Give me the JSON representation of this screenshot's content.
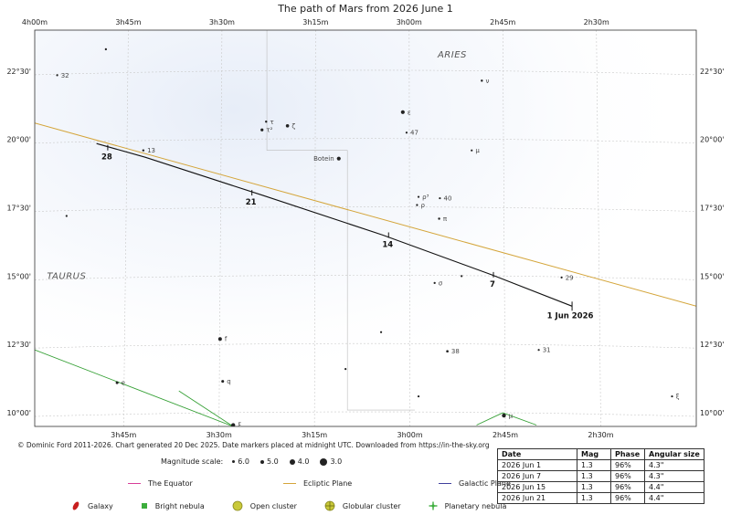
{
  "title": "The path of Mars from 2026 June 1",
  "chart_data": {
    "type": "line",
    "ra_axis": {
      "direction": "decreasing-left-to-right",
      "range_hours": [
        4.0,
        2.2333
      ],
      "top_ticks": [
        {
          "ra": 4.0,
          "label": "4h00m"
        },
        {
          "ra": 3.75,
          "label": "3h45m"
        },
        {
          "ra": 3.5,
          "label": "3h30m"
        },
        {
          "ra": 3.25,
          "label": "3h15m"
        },
        {
          "ra": 3.0,
          "label": "3h00m"
        },
        {
          "ra": 2.75,
          "label": "2h45m"
        },
        {
          "ra": 2.5,
          "label": "2h30m"
        }
      ],
      "bottom_ticks": [
        {
          "ra": 3.75,
          "label": "3h45m"
        },
        {
          "ra": 3.5,
          "label": "3h30m"
        },
        {
          "ra": 3.25,
          "label": "3h15m"
        },
        {
          "ra": 3.0,
          "label": "3h00m"
        },
        {
          "ra": 2.75,
          "label": "2h45m"
        },
        {
          "ra": 2.5,
          "label": "2h30m"
        }
      ]
    },
    "dec_axis": {
      "range_deg": [
        9.5,
        24.0
      ],
      "ticks": [
        {
          "dec": 22.5,
          "label": "22°30'"
        },
        {
          "dec": 20.0,
          "label": "20°00'"
        },
        {
          "dec": 17.5,
          "label": "17°30'"
        },
        {
          "dec": 15.0,
          "label": "15°00'"
        },
        {
          "dec": 12.5,
          "label": "12°30'"
        },
        {
          "dec": 10.0,
          "label": "10°00'"
        }
      ]
    },
    "grid": true,
    "constellations": [
      {
        "name": "ARIES",
        "ra": 2.885,
        "dec": 23.0
      },
      {
        "name": "TAURUS",
        "ra": 3.915,
        "dec": 14.9
      }
    ],
    "mars_path": [
      {
        "ra": 2.565,
        "dec": 13.9
      },
      {
        "ra": 2.78,
        "dec": 15.05
      },
      {
        "ra": 3.07,
        "dec": 16.5
      },
      {
        "ra": 3.39,
        "dec": 17.95
      },
      {
        "ra": 3.705,
        "dec": 19.35
      },
      {
        "ra": 3.835,
        "dec": 19.85
      }
    ],
    "date_markers": [
      {
        "label": "1 Jun 2026",
        "ra": 2.565,
        "dec": 13.9
      },
      {
        "label": "7",
        "ra": 2.775,
        "dec": 15.05
      },
      {
        "label": "14",
        "ra": 3.055,
        "dec": 16.5
      },
      {
        "label": "21",
        "ra": 3.42,
        "dec": 18.05
      },
      {
        "label": "28",
        "ra": 3.805,
        "dec": 19.7
      }
    ],
    "ecliptic": [
      {
        "ra": 4.0,
        "dec": 20.6
      },
      {
        "ra": 2.2333,
        "dec": 13.9
      }
    ],
    "galactic_plane": [],
    "equator": [],
    "green_lines": [
      [
        {
          "ra": 4.0,
          "dec": 12.3
        },
        {
          "ra": 3.47,
          "dec": 9.5
        }
      ],
      [
        {
          "ra": 3.47,
          "dec": 9.5
        },
        {
          "ra": 3.615,
          "dec": 10.8
        }
      ],
      [
        {
          "ra": 2.82,
          "dec": 9.55
        },
        {
          "ra": 2.75,
          "dec": 10.0
        }
      ],
      [
        {
          "ra": 2.75,
          "dec": 10.0
        },
        {
          "ra": 2.66,
          "dec": 9.55
        }
      ]
    ],
    "constellation_boundaries": [
      [
        {
          "ra": 3.38,
          "dec": 24.0
        },
        {
          "ra": 3.38,
          "dec": 19.6
        },
        {
          "ra": 3.165,
          "dec": 19.6
        },
        {
          "ra": 3.165,
          "dec": 10.1
        },
        {
          "ra": 2.985,
          "dec": 10.1
        }
      ]
    ],
    "stars": [
      {
        "ra": 3.94,
        "dec": 22.35,
        "mag": 5.5,
        "label": "32"
      },
      {
        "ra": 3.81,
        "dec": 23.3,
        "mag": 5.3,
        "label": ""
      },
      {
        "ra": 3.71,
        "dec": 19.6,
        "mag": 5.2,
        "label": "13"
      },
      {
        "ra": 3.915,
        "dec": 17.2,
        "mag": 5.8,
        "label": ""
      },
      {
        "ra": 3.382,
        "dec": 20.65,
        "mag": 5.2,
        "label": "τ"
      },
      {
        "ra": 3.393,
        "dec": 20.35,
        "mag": 4.8,
        "label": "τ²"
      },
      {
        "ra": 3.325,
        "dec": 20.5,
        "mag": 4.6,
        "label": "ζ"
      },
      {
        "ra": 3.017,
        "dec": 21.0,
        "mag": 4.3,
        "label": "ε"
      },
      {
        "ra": 3.007,
        "dec": 20.25,
        "mag": 5.6,
        "label": "47"
      },
      {
        "ra": 3.188,
        "dec": 19.3,
        "mag": 4.3,
        "label": "Botein"
      },
      {
        "ra": 2.806,
        "dec": 22.15,
        "mag": 5.2,
        "label": "ν"
      },
      {
        "ra": 2.833,
        "dec": 19.6,
        "mag": 5.4,
        "label": "μ"
      },
      {
        "ra": 2.975,
        "dec": 17.9,
        "mag": 5.7,
        "label": "ρ³"
      },
      {
        "ra": 2.979,
        "dec": 17.6,
        "mag": 5.3,
        "label": "ρ"
      },
      {
        "ra": 2.918,
        "dec": 17.85,
        "mag": 5.6,
        "label": "40"
      },
      {
        "ra": 2.92,
        "dec": 17.1,
        "mag": 5.2,
        "label": "π"
      },
      {
        "ra": 2.932,
        "dec": 14.75,
        "mag": 5.3,
        "label": "σ"
      },
      {
        "ra": 2.86,
        "dec": 15.0,
        "mag": 5.6,
        "label": ""
      },
      {
        "ra": 2.593,
        "dec": 14.95,
        "mag": 5.9,
        "label": "29"
      },
      {
        "ra": 3.075,
        "dec": 12.95,
        "mag": 5.6,
        "label": ""
      },
      {
        "ra": 3.505,
        "dec": 12.7,
        "mag": 4.4,
        "label": "f"
      },
      {
        "ra": 3.498,
        "dec": 11.15,
        "mag": 4.9,
        "label": "q"
      },
      {
        "ra": 3.78,
        "dec": 11.1,
        "mag": 4.9,
        "label": "e"
      },
      {
        "ra": 3.17,
        "dec": 11.6,
        "mag": 5.8,
        "label": ""
      },
      {
        "ra": 2.898,
        "dec": 12.25,
        "mag": 5.1,
        "label": "38"
      },
      {
        "ra": 2.654,
        "dec": 12.3,
        "mag": 5.4,
        "label": "31"
      },
      {
        "ra": 2.975,
        "dec": 10.6,
        "mag": 5.9,
        "label": ""
      },
      {
        "ra": 2.298,
        "dec": 10.6,
        "mag": 5.4,
        "label": "ξ"
      },
      {
        "ra": 2.747,
        "dec": 9.9,
        "mag": 4.2,
        "label": "μ"
      },
      {
        "ra": 3.47,
        "dec": 9.55,
        "mag": 4.2,
        "label": "ξ"
      }
    ]
  },
  "copyright": "© Dominic Ford 2011-2026. Chart generated 20 Dec 2025. Date markers placed at midnight UTC. Downloaded from https://in-the-sky.org",
  "magnitude_scale": {
    "label": "Magnitude scale:",
    "items": [
      {
        "value": "6.0",
        "size": 3
      },
      {
        "value": "5.0",
        "size": 4
      },
      {
        "value": "4.0",
        "size": 6
      },
      {
        "value": "3.0",
        "size": 8
      }
    ]
  },
  "legend_lines": [
    {
      "label": "The Equator",
      "color": "#d83d99"
    },
    {
      "label": "Ecliptic Plane",
      "color": "#d4a53a"
    },
    {
      "label": "Galactic Plane",
      "color": "#3f3f9d"
    }
  ],
  "legend_objects": [
    {
      "label": "Galaxy",
      "icon": "red-ellipse-icon",
      "color": "#c81e1e"
    },
    {
      "label": "Bright nebula",
      "icon": "green-square-icon",
      "color": "#3cad3c"
    },
    {
      "label": "Open cluster",
      "icon": "yellow-circle-icon",
      "color": "#c9c93a"
    },
    {
      "label": "Globular cluster",
      "icon": "yellow-crosshair-circle-icon",
      "color": "#c9c93a"
    },
    {
      "label": "Planetary nebula",
      "icon": "green-plus-icon",
      "color": "#3cad3c"
    }
  ],
  "colors": {
    "mars_path": "#111111",
    "ecliptic": "#d4a53a",
    "green_line": "#35a035",
    "grid": "#c9c9c9",
    "boundary": "#bdbdbd",
    "sky_tint": "#e8eef8"
  },
  "table": {
    "headers": [
      "Date",
      "Mag",
      "Phase",
      "Angular size"
    ],
    "rows": [
      [
        "2026 Jun 1",
        "1.3",
        "96%",
        "4.3\""
      ],
      [
        "2026 Jun 7",
        "1.3",
        "96%",
        "4.3\""
      ],
      [
        "2026 Jun 15",
        "1.3",
        "96%",
        "4.4\""
      ],
      [
        "2026 Jun 21",
        "1.3",
        "96%",
        "4.4\""
      ]
    ]
  }
}
